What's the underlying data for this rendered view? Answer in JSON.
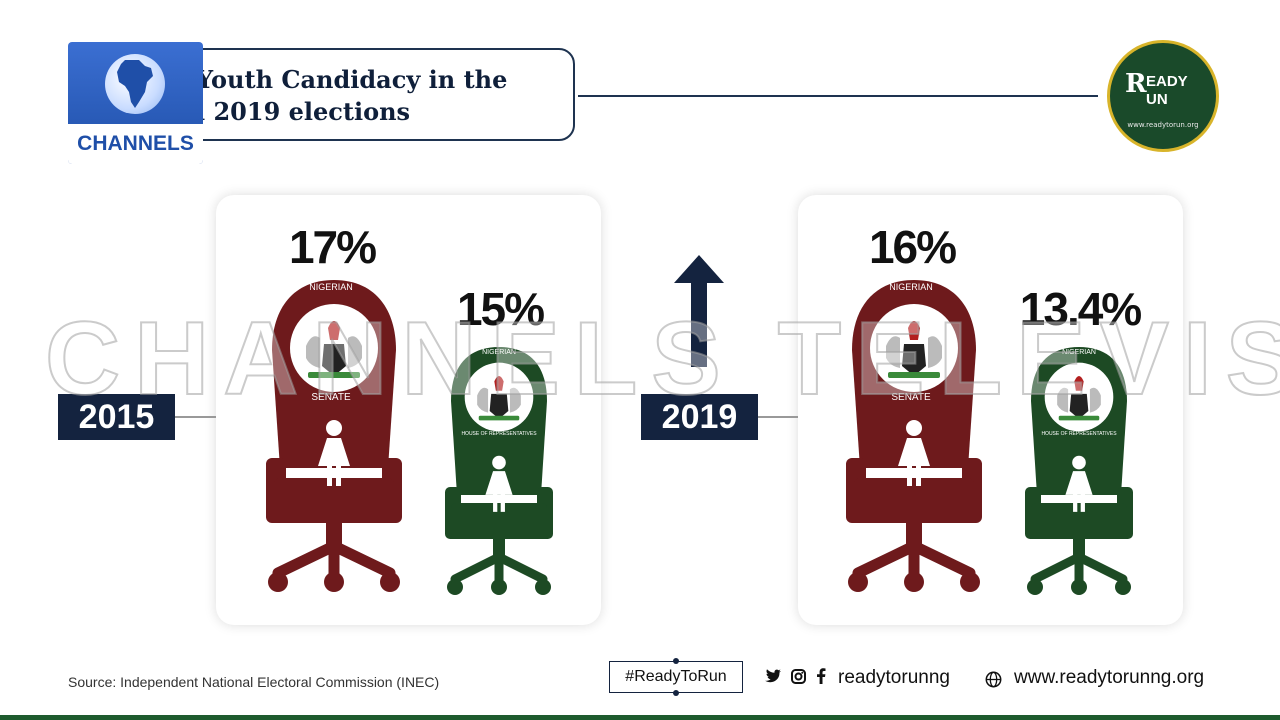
{
  "header": {
    "title_line1": "Youth Candidacy in the",
    "title_line2": "l 2019 elections",
    "channels_logo_text": "CHANNELS",
    "ready_logo": {
      "word1_a": "R",
      "word1_b": "EADY",
      "word2": "UN",
      "url": "www.readytorun.org"
    }
  },
  "watermark": "CHANNELS TELEVISION",
  "panels": [
    {
      "year": "2015",
      "senate": {
        "percent": "17%",
        "label_top": "NIGERIAN",
        "label_bottom": "SENATE"
      },
      "house": {
        "percent": "15%",
        "label_top": "NIGERIAN",
        "label_bottom": "HOUSE OF REPRESENTATIVES"
      }
    },
    {
      "year": "2019",
      "senate": {
        "percent": "16%",
        "label_top": "NIGERIAN",
        "label_bottom": "SENATE"
      },
      "house": {
        "percent": "13.4%",
        "label_top": "NIGERIAN",
        "label_bottom": "HOUSE OF REPRESENTATIVES"
      }
    }
  ],
  "footer": {
    "source": "Source: Independent National Electoral Commission (INEC)",
    "hashtag": "#ReadyToRun",
    "social_icons": [
      "twitter-icon",
      "instagram-icon",
      "facebook-icon"
    ],
    "social_handle": "readytorunng",
    "website": "www.readytorunng.org"
  },
  "colors": {
    "senate": "#6e1a1c",
    "house": "#1d4a24",
    "navy": "#14233f",
    "accent_green": "#1e5b2e"
  }
}
